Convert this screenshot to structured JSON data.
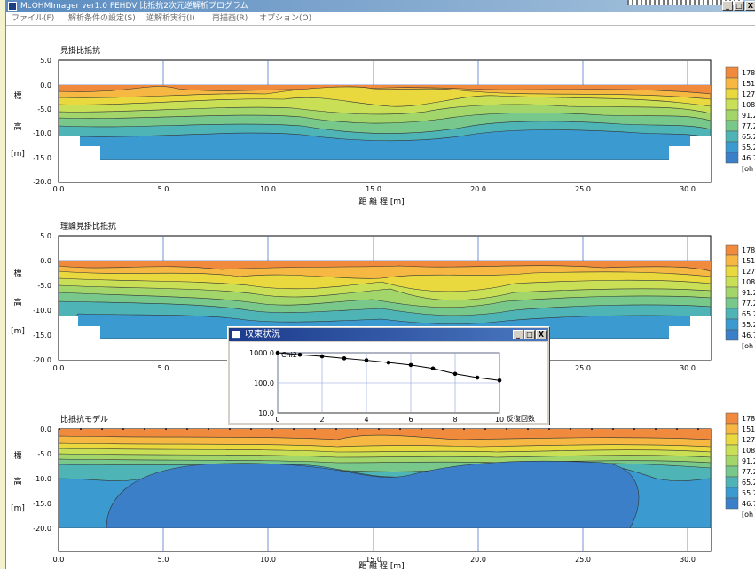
{
  "window": {
    "title": "McOHMImager ver1.0  FEHDV  比抵抗2次元逆解析プログラム",
    "controls": [
      "_",
      "□",
      "X"
    ]
  },
  "menu": [
    "ファイル(F)",
    "解析条件の設定(S)",
    "逆解析実行(I)",
    "再描画(R)",
    "オプション(O)"
  ],
  "axes": {
    "y_label_chars": [
      "標",
      "高",
      "[m]"
    ],
    "x_label": "距 離 程 [m]",
    "x_ticks": [
      "0.0",
      "5.0",
      "10.0",
      "15.0",
      "20.0",
      "25.0",
      "30.0"
    ],
    "y_ticks": [
      "5.0",
      "0.0",
      "-5.0",
      "-10.0",
      "-15.0",
      "-20.0"
    ],
    "y_ticks_model": [
      "0.0",
      "-5.0",
      "-10.0",
      "-15.0",
      "-20.0"
    ]
  },
  "legend": {
    "labels": [
      "178",
      "151",
      "127",
      "108",
      "91.2",
      "77.2",
      "65.2",
      "55.2",
      "46.7",
      "[oh"
    ],
    "colors": [
      "#f08a3c",
      "#f6b842",
      "#e9d83e",
      "#c9df56",
      "#a2d56a",
      "#77c88a",
      "#4eb4b6",
      "#3b9bd0",
      "#3a7fc8"
    ]
  },
  "panels": [
    {
      "title": "見掛比抵抗",
      "has_x_label": true
    },
    {
      "title": "理論見掛比抵抗",
      "has_x_label": false
    },
    {
      "title": "比抵抗モデル",
      "has_x_label": true
    }
  ],
  "dialog": {
    "title": "収束状況",
    "controls": [
      "_",
      "□",
      "X"
    ],
    "series_label": "Chi2",
    "x_axis_label": "反復回数"
  },
  "chart_data": {
    "type": "line",
    "title": "",
    "xlabel": "反復回数",
    "ylabel": "",
    "yscale": "log",
    "xlim": [
      0,
      10
    ],
    "ylim": [
      10,
      1000
    ],
    "x_ticks": [
      "0",
      "2",
      "4",
      "6",
      "8",
      "10"
    ],
    "y_ticks": [
      "1000.0",
      "100.0",
      "10.0"
    ],
    "series": [
      {
        "name": "Chi2",
        "x": [
          0,
          1,
          2,
          3,
          4,
          5,
          6,
          7,
          8,
          9,
          10
        ],
        "values": [
          1000,
          860,
          760,
          650,
          560,
          470,
          390,
          300,
          200,
          150,
          120
        ]
      }
    ]
  }
}
